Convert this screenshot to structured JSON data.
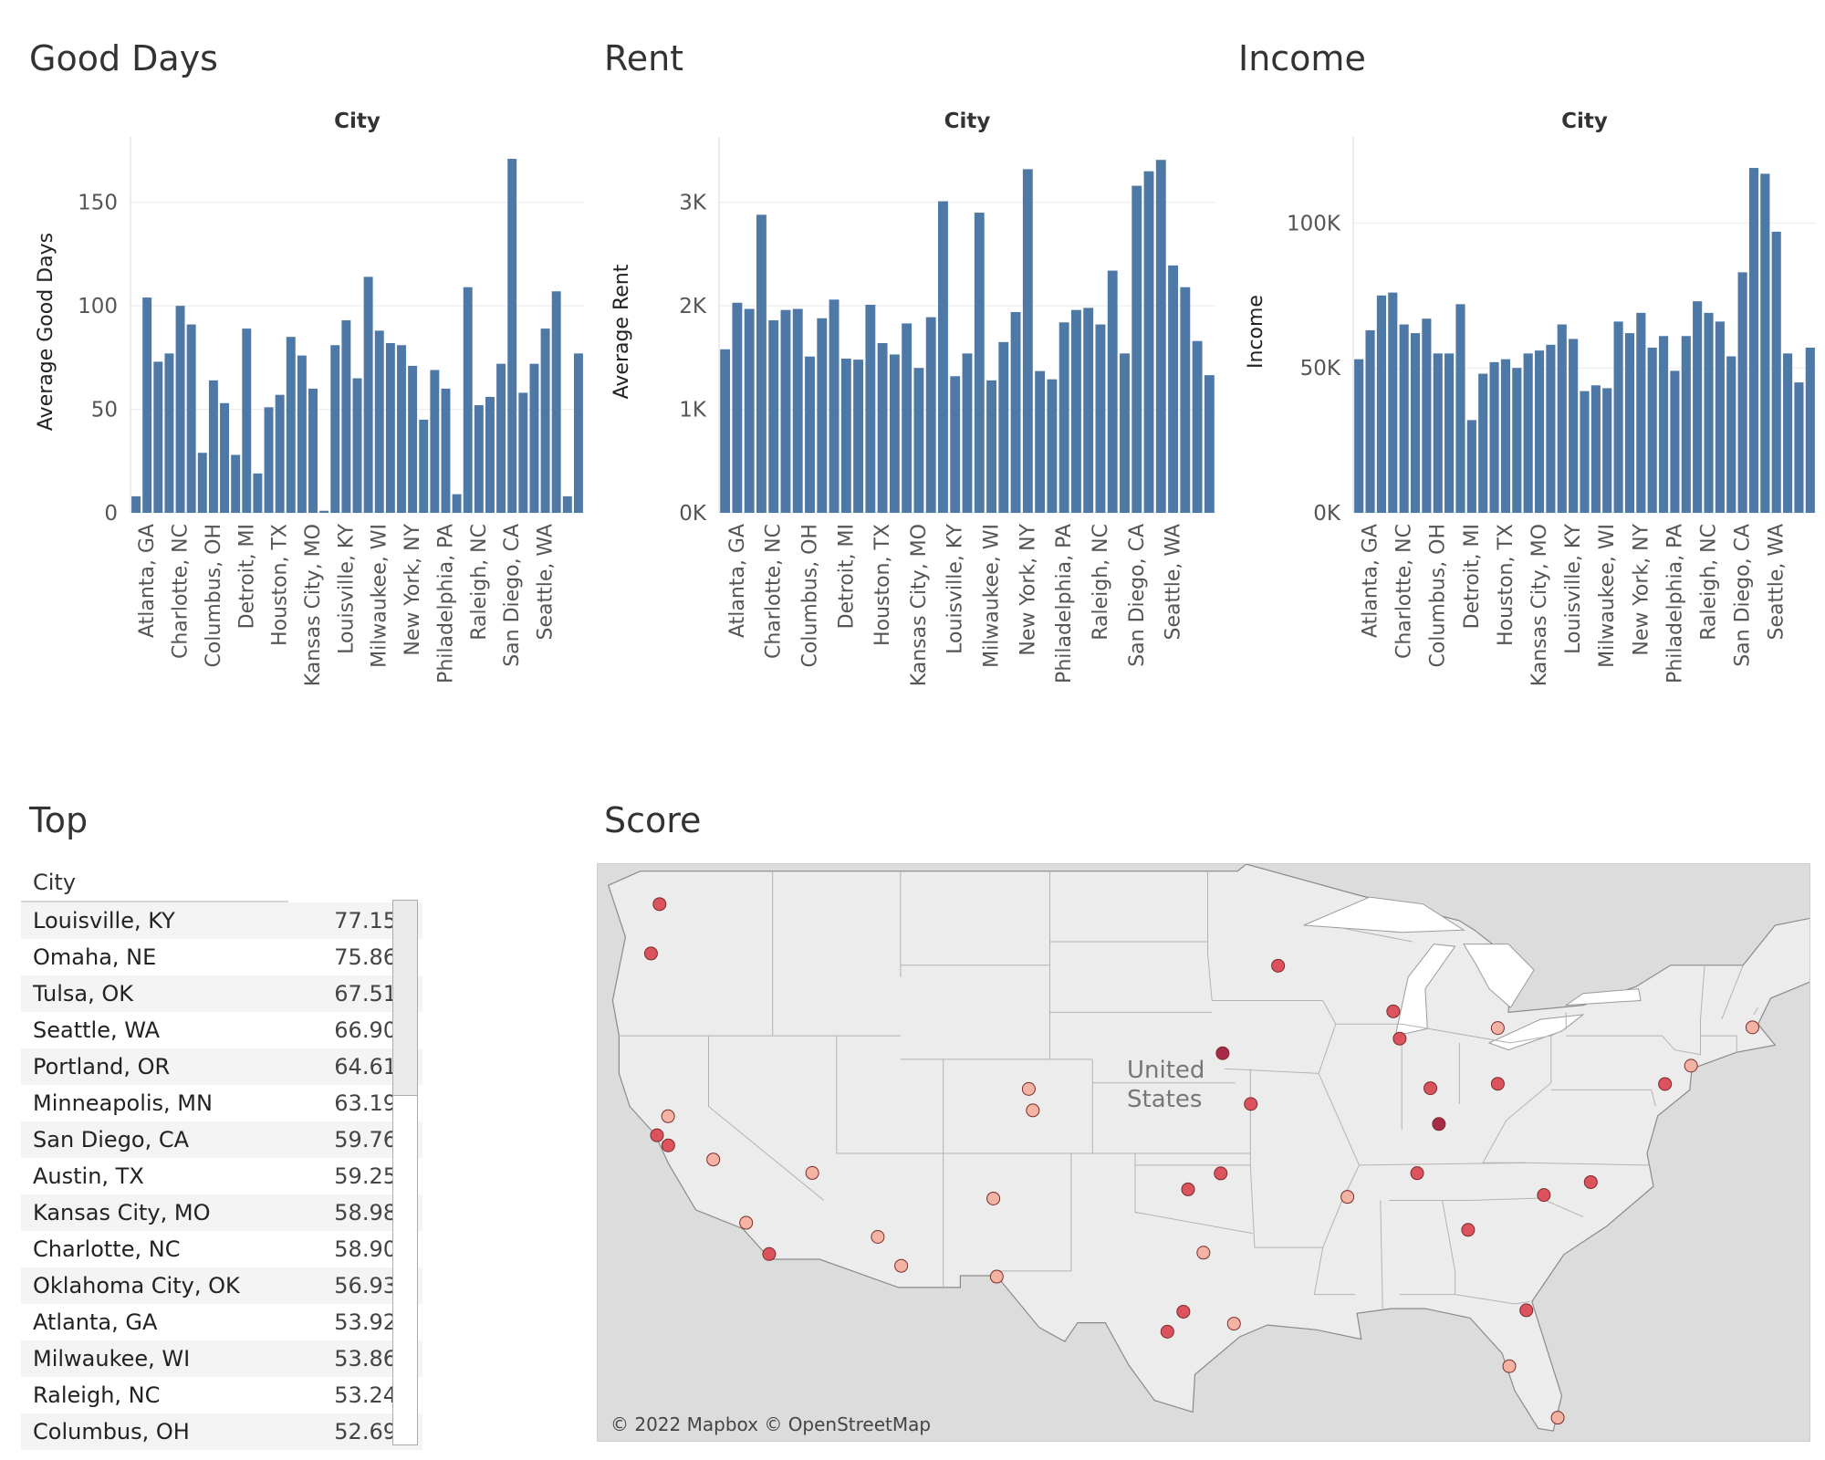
{
  "panels": {
    "good_days": "Good Days",
    "rent": "Rent",
    "income": "Income",
    "top": "Top",
    "score": "Score"
  },
  "colors": {
    "bar": "#4e79a7",
    "axis": "#333333",
    "grid": "#ebebeb",
    "marker_dark": "#a51f3f",
    "marker_mid": "#db4b55",
    "marker_light": "#f5b0a0"
  },
  "chart_data": [
    {
      "type": "bar",
      "title": "Good Days",
      "header": "City",
      "ylabel": "Average Good Days",
      "ylim": [
        0,
        175
      ],
      "yticks": [
        {
          "v": 0,
          "label": "0"
        },
        {
          "v": 50,
          "label": "50"
        },
        {
          "v": 100,
          "label": "100"
        },
        {
          "v": 150,
          "label": "150"
        }
      ],
      "labeled_categories": [
        "Atlanta, GA",
        "Charlotte, NC",
        "Columbus, OH",
        "Detroit, MI",
        "Houston, TX",
        "Kansas City, MO",
        "Louisville, KY",
        "Milwaukee, WI",
        "New York, NY",
        "Philadelphia, PA",
        "Raleigh, NC",
        "San Diego, CA",
        "Seattle, WA"
      ],
      "values": [
        8,
        104,
        73,
        77,
        100,
        91,
        29,
        64,
        53,
        28,
        89,
        19,
        51,
        57,
        85,
        76,
        60,
        1,
        81,
        93,
        65,
        114,
        88,
        82,
        81,
        71,
        45,
        69,
        60,
        9,
        109,
        52,
        56,
        72,
        171,
        58,
        72,
        89,
        107,
        8,
        77
      ]
    },
    {
      "type": "bar",
      "title": "Rent",
      "header": "City",
      "ylabel": "Average Rent",
      "ylim": [
        0,
        3500
      ],
      "yticks": [
        {
          "v": 0,
          "label": "0K"
        },
        {
          "v": 1000,
          "label": "1K"
        },
        {
          "v": 2000,
          "label": "2K"
        },
        {
          "v": 3000,
          "label": "3K"
        }
      ],
      "labeled_categories": [
        "Atlanta, GA",
        "Charlotte, NC",
        "Columbus, OH",
        "Detroit, MI",
        "Houston, TX",
        "Kansas City, MO",
        "Louisville, KY",
        "Milwaukee, WI",
        "New York, NY",
        "Philadelphia, PA",
        "Raleigh, NC",
        "San Diego, CA",
        "Seattle, WA"
      ],
      "values": [
        1580,
        2030,
        1970,
        2880,
        1860,
        1960,
        1970,
        1510,
        1880,
        2060,
        1490,
        1480,
        2010,
        1640,
        1530,
        1830,
        1400,
        1890,
        3010,
        1320,
        1540,
        2900,
        1280,
        1650,
        1940,
        3320,
        1370,
        1290,
        1840,
        1960,
        1980,
        1820,
        2340,
        1540,
        3160,
        3300,
        3410,
        2390,
        2180,
        1660,
        1330
      ]
    },
    {
      "type": "bar",
      "title": "Income",
      "header": "City",
      "ylabel": "Income",
      "ylim": [
        0,
        125000
      ],
      "yticks": [
        {
          "v": 0,
          "label": "0K"
        },
        {
          "v": 50000,
          "label": "50K"
        },
        {
          "v": 100000,
          "label": "100K"
        }
      ],
      "labeled_categories": [
        "Atlanta, GA",
        "Charlotte, NC",
        "Columbus, OH",
        "Detroit, MI",
        "Houston, TX",
        "Kansas City, MO",
        "Louisville, KY",
        "Milwaukee, WI",
        "New York, NY",
        "Philadelphia, PA",
        "Raleigh, NC",
        "San Diego, CA",
        "Seattle, WA"
      ],
      "values": [
        53000,
        63000,
        75000,
        76000,
        65000,
        62000,
        67000,
        55000,
        55000,
        72000,
        32000,
        48000,
        52000,
        53000,
        50000,
        55000,
        56000,
        58000,
        65000,
        60000,
        42000,
        44000,
        43000,
        66000,
        62000,
        69000,
        57000,
        61000,
        49000,
        61000,
        73000,
        69000,
        66000,
        54000,
        83000,
        119000,
        117000,
        97000,
        55000,
        45000,
        57000
      ]
    }
  ],
  "top_table": {
    "header": "City",
    "rows": [
      {
        "city": "Louisville, KY",
        "score": "77.15"
      },
      {
        "city": "Omaha, NE",
        "score": "75.86"
      },
      {
        "city": "Tulsa, OK",
        "score": "67.51"
      },
      {
        "city": "Seattle, WA",
        "score": "66.90"
      },
      {
        "city": "Portland, OR",
        "score": "64.61"
      },
      {
        "city": "Minneapolis, MN",
        "score": "63.19"
      },
      {
        "city": "San Diego, CA",
        "score": "59.76"
      },
      {
        "city": "Austin, TX",
        "score": "59.25"
      },
      {
        "city": "Kansas City, MO",
        "score": "58.98"
      },
      {
        "city": "Charlotte, NC",
        "score": "58.90"
      },
      {
        "city": "Oklahoma City, OK",
        "score": "56.93"
      },
      {
        "city": "Atlanta, GA",
        "score": "53.92"
      },
      {
        "city": "Milwaukee, WI",
        "score": "53.86"
      },
      {
        "city": "Raleigh, NC",
        "score": "53.24"
      },
      {
        "city": "Columbus, OH",
        "score": "52.69"
      }
    ]
  },
  "map": {
    "label_line1": "United",
    "label_line2": "States",
    "attribution": "© 2022 Mapbox © OpenStreetMap",
    "points": [
      {
        "lon": -122.3,
        "lat": 47.6,
        "level": "mid"
      },
      {
        "lon": -122.7,
        "lat": 45.5,
        "level": "mid"
      },
      {
        "lon": -93.3,
        "lat": 44.98,
        "level": "mid"
      },
      {
        "lon": -87.9,
        "lat": 43.04,
        "level": "mid"
      },
      {
        "lon": -87.6,
        "lat": 41.88,
        "level": "mid"
      },
      {
        "lon": -83.0,
        "lat": 42.33,
        "level": "light"
      },
      {
        "lon": -71.06,
        "lat": 42.36,
        "level": "light"
      },
      {
        "lon": -73.94,
        "lat": 40.73,
        "level": "light"
      },
      {
        "lon": -75.16,
        "lat": 39.95,
        "level": "mid"
      },
      {
        "lon": -95.9,
        "lat": 41.26,
        "level": "dark"
      },
      {
        "lon": -94.58,
        "lat": 39.1,
        "level": "mid"
      },
      {
        "lon": -86.16,
        "lat": 39.77,
        "level": "mid"
      },
      {
        "lon": -83.0,
        "lat": 39.96,
        "level": "mid"
      },
      {
        "lon": -85.76,
        "lat": 38.25,
        "level": "dark"
      },
      {
        "lon": -104.99,
        "lat": 39.74,
        "level": "light"
      },
      {
        "lon": -104.8,
        "lat": 38.83,
        "level": "light"
      },
      {
        "lon": -121.9,
        "lat": 38.58,
        "level": "light"
      },
      {
        "lon": -122.42,
        "lat": 37.77,
        "level": "mid"
      },
      {
        "lon": -121.89,
        "lat": 37.34,
        "level": "mid"
      },
      {
        "lon": -119.78,
        "lat": 36.74,
        "level": "light"
      },
      {
        "lon": -115.14,
        "lat": 36.17,
        "level": "light"
      },
      {
        "lon": -118.24,
        "lat": 34.05,
        "level": "light"
      },
      {
        "lon": -117.16,
        "lat": 32.72,
        "level": "mid"
      },
      {
        "lon": -112.07,
        "lat": 33.45,
        "level": "light"
      },
      {
        "lon": -110.97,
        "lat": 32.22,
        "level": "light"
      },
      {
        "lon": -106.65,
        "lat": 35.08,
        "level": "light"
      },
      {
        "lon": -106.49,
        "lat": 31.76,
        "level": "light"
      },
      {
        "lon": -97.52,
        "lat": 35.47,
        "level": "mid"
      },
      {
        "lon": -95.99,
        "lat": 36.15,
        "level": "mid"
      },
      {
        "lon": -96.8,
        "lat": 32.78,
        "level": "light"
      },
      {
        "lon": -97.74,
        "lat": 30.27,
        "level": "mid"
      },
      {
        "lon": -98.49,
        "lat": 29.42,
        "level": "mid"
      },
      {
        "lon": -95.37,
        "lat": 29.76,
        "level": "light"
      },
      {
        "lon": -90.05,
        "lat": 35.15,
        "level": "light"
      },
      {
        "lon": -86.78,
        "lat": 36.16,
        "level": "mid"
      },
      {
        "lon": -84.39,
        "lat": 33.75,
        "level": "mid"
      },
      {
        "lon": -80.84,
        "lat": 35.23,
        "level": "mid"
      },
      {
        "lon": -78.64,
        "lat": 35.78,
        "level": "mid"
      },
      {
        "lon": -81.66,
        "lat": 30.33,
        "level": "mid"
      },
      {
        "lon": -82.46,
        "lat": 27.95,
        "level": "light"
      },
      {
        "lon": -80.19,
        "lat": 25.76,
        "level": "light"
      }
    ]
  }
}
